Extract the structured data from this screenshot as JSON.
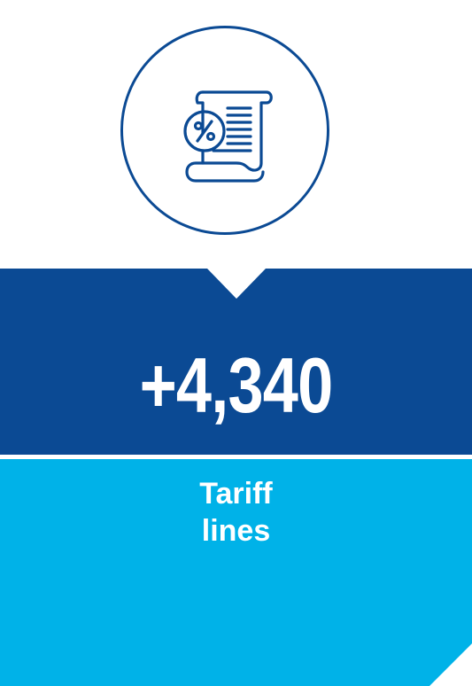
{
  "stat": {
    "value": "+4,340",
    "label_line1": "Tariff",
    "label_line2": "lines"
  },
  "icon": "tariff-scroll-percent-icon",
  "colors": {
    "dark_blue": "#0b4a94",
    "light_blue": "#00b2e8",
    "white": "#ffffff"
  }
}
